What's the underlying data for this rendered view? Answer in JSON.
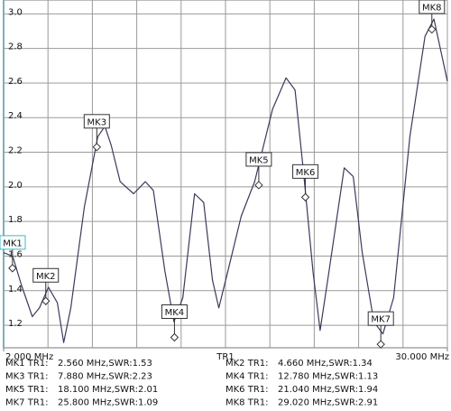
{
  "chart_data": {
    "type": "line",
    "series": [
      {
        "name": "TR1",
        "color": "#3a3a5c",
        "x": [
          2.0,
          2.57,
          3.13,
          3.81,
          4.26,
          4.83,
          5.39,
          5.79,
          6.24,
          7.09,
          7.94,
          8.39,
          8.79,
          9.35,
          10.2,
          10.94,
          11.45,
          12.18,
          12.75,
          13.31,
          14.05,
          14.62,
          15.18,
          15.58,
          16.14,
          16.99,
          17.84,
          18.97,
          19.82,
          20.39,
          20.95,
          21.52,
          21.97,
          22.53,
          23.49,
          24.06,
          24.63,
          25.36,
          25.93,
          26.61,
          27.63,
          28.59,
          29.15,
          30.0
        ],
        "values": [
          1.62,
          1.6,
          1.43,
          1.25,
          1.3,
          1.42,
          1.33,
          1.1,
          1.3,
          1.88,
          2.29,
          2.35,
          2.24,
          2.03,
          1.96,
          2.03,
          1.98,
          1.51,
          1.22,
          1.36,
          1.96,
          1.91,
          1.46,
          1.3,
          1.51,
          1.83,
          2.03,
          2.45,
          2.63,
          2.56,
          2.06,
          1.51,
          1.17,
          1.51,
          2.11,
          2.06,
          1.62,
          1.22,
          1.15,
          1.36,
          2.29,
          2.87,
          2.97,
          2.61
        ]
      }
    ],
    "xlim": [
      2,
      30
    ],
    "ylim": [
      1.07,
      3.08
    ],
    "xticks": [
      {
        "value": 2,
        "label": "2.000 MHz"
      },
      {
        "value": 30,
        "label": "30.000 MHz"
      }
    ],
    "xgrid": [
      2,
      4.8,
      7.6,
      10.4,
      13.2,
      16,
      18.8,
      21.6,
      24.4,
      27.2,
      30
    ],
    "yticks": [
      1.2,
      1.4,
      1.6,
      1.8,
      {
        "value": 2,
        "label": "2.0"
      },
      2.2,
      2.4,
      2.6,
      2.8,
      {
        "value": 3,
        "label": "3.0"
      }
    ],
    "trace_label": "TR1",
    "grid": true,
    "markers": [
      {
        "name": "MK1",
        "x": 2.56,
        "y": 1.53
      },
      {
        "name": "MK2",
        "x": 4.66,
        "y": 1.34
      },
      {
        "name": "MK3",
        "x": 7.88,
        "y": 2.23
      },
      {
        "name": "MK4",
        "x": 12.78,
        "y": 1.13
      },
      {
        "name": "MK5",
        "x": 18.1,
        "y": 2.01
      },
      {
        "name": "MK6",
        "x": 21.04,
        "y": 1.94
      },
      {
        "name": "MK7",
        "x": 25.8,
        "y": 1.09
      },
      {
        "name": "MK8",
        "x": 29.02,
        "y": 2.91
      }
    ],
    "readout": [
      [
        "MK1 TR1:",
        "2.560 MHz,SWR:1.53"
      ],
      [
        "MK2 TR1:",
        "4.660 MHz,SWR:1.34"
      ],
      [
        "MK3 TR1:",
        "7.880 MHz,SWR:2.23"
      ],
      [
        "MK4 TR1:",
        "12.780 MHz,SWR:1.13"
      ],
      [
        "MK5 TR1:",
        "18.100 MHz,SWR:2.01"
      ],
      [
        "MK6 TR1:",
        "21.040 MHz,SWR:1.94"
      ],
      [
        "MK7 TR1:",
        "25.800 MHz,SWR:1.09"
      ],
      [
        "MK8 TR1:",
        "29.020 MHz,SWR:2.91"
      ]
    ]
  }
}
